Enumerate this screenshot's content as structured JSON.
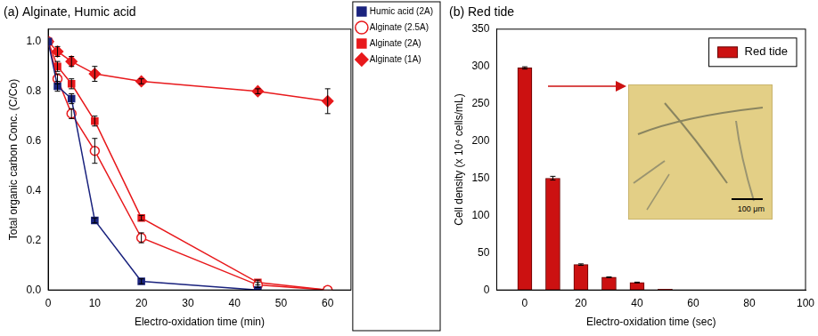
{
  "chart_data": [
    {
      "type": "line",
      "title": "(a) Alginate, Humic acid",
      "x_label": "Electro-oxidation time (min)",
      "y_label": "Total organic carbon Conc. (C/Co)",
      "x": [
        0,
        2,
        5,
        10,
        20,
        45,
        60
      ],
      "series": [
        {
          "name": "Humic acid (2A)",
          "color": "#1a237e",
          "marker": "square",
          "values": [
            1.0,
            0.82,
            0.77,
            0.28,
            0.035,
            0.0,
            null
          ],
          "errors": [
            0,
            0.02,
            0.02,
            0.01,
            0.01,
            0,
            null
          ]
        },
        {
          "name": "Alginate (2.5A)",
          "color": "#e8191c",
          "marker": "circle-open",
          "values": [
            1.0,
            0.85,
            0.71,
            0.56,
            0.21,
            0.02,
            0.0
          ],
          "errors": [
            0,
            0.02,
            0.02,
            0.05,
            0.02,
            0.01,
            0
          ]
        },
        {
          "name": "Alginate (2A)",
          "color": "#e8191c",
          "marker": "square",
          "values": [
            1.0,
            0.9,
            0.83,
            0.68,
            0.29,
            0.03,
            0.0
          ],
          "errors": [
            0,
            0.02,
            0.02,
            0.02,
            0.01,
            0.01,
            0
          ]
        },
        {
          "name": "Alginate (1A)",
          "color": "#e8191c",
          "marker": "diamond",
          "values": [
            1.0,
            0.96,
            0.92,
            0.87,
            0.84,
            0.8,
            0.76
          ],
          "errors": [
            0,
            0.02,
            0.02,
            0.03,
            0.01,
            0.01,
            0.05
          ]
        }
      ],
      "xlim": [
        0,
        65
      ],
      "xticks": [
        0,
        10,
        20,
        30,
        40,
        50,
        60
      ],
      "ylim": [
        0,
        1.05
      ],
      "yticks": [
        {
          "value": 0,
          "label": "0.0"
        },
        {
          "value": 0.2,
          "label": "0.2"
        },
        {
          "value": 0.4,
          "label": "0.4"
        },
        {
          "value": 0.6,
          "label": "0.6"
        },
        {
          "value": 0.8,
          "label": "0.8"
        },
        {
          "value": 1,
          "label": "1.0"
        }
      ],
      "grid": false,
      "legend": "right"
    },
    {
      "type": "bar",
      "title": "(b) Red tide",
      "x_label": "Electro-oxidation time (sec)",
      "y_label": "Cell density (x 10⁴ cells/mL)",
      "x": [
        0,
        10,
        20,
        30,
        40,
        50
      ],
      "series": [
        {
          "name": "Red tide",
          "color": "#cc1111",
          "values": [
            298,
            150,
            34,
            17,
            10,
            1
          ],
          "errors": [
            1.5,
            2.5,
            1,
            0.5,
            0.5,
            0
          ]
        }
      ],
      "xlim": [
        -10,
        100
      ],
      "xticks": [
        0,
        20,
        40,
        60,
        80,
        100
      ],
      "ylim": [
        0,
        350
      ],
      "yticks": [
        0,
        50,
        100,
        150,
        200,
        250,
        300,
        350
      ],
      "grid": false,
      "legend": "upper right",
      "annotations": [
        {
          "text": "100 μm"
        }
      ]
    }
  ]
}
